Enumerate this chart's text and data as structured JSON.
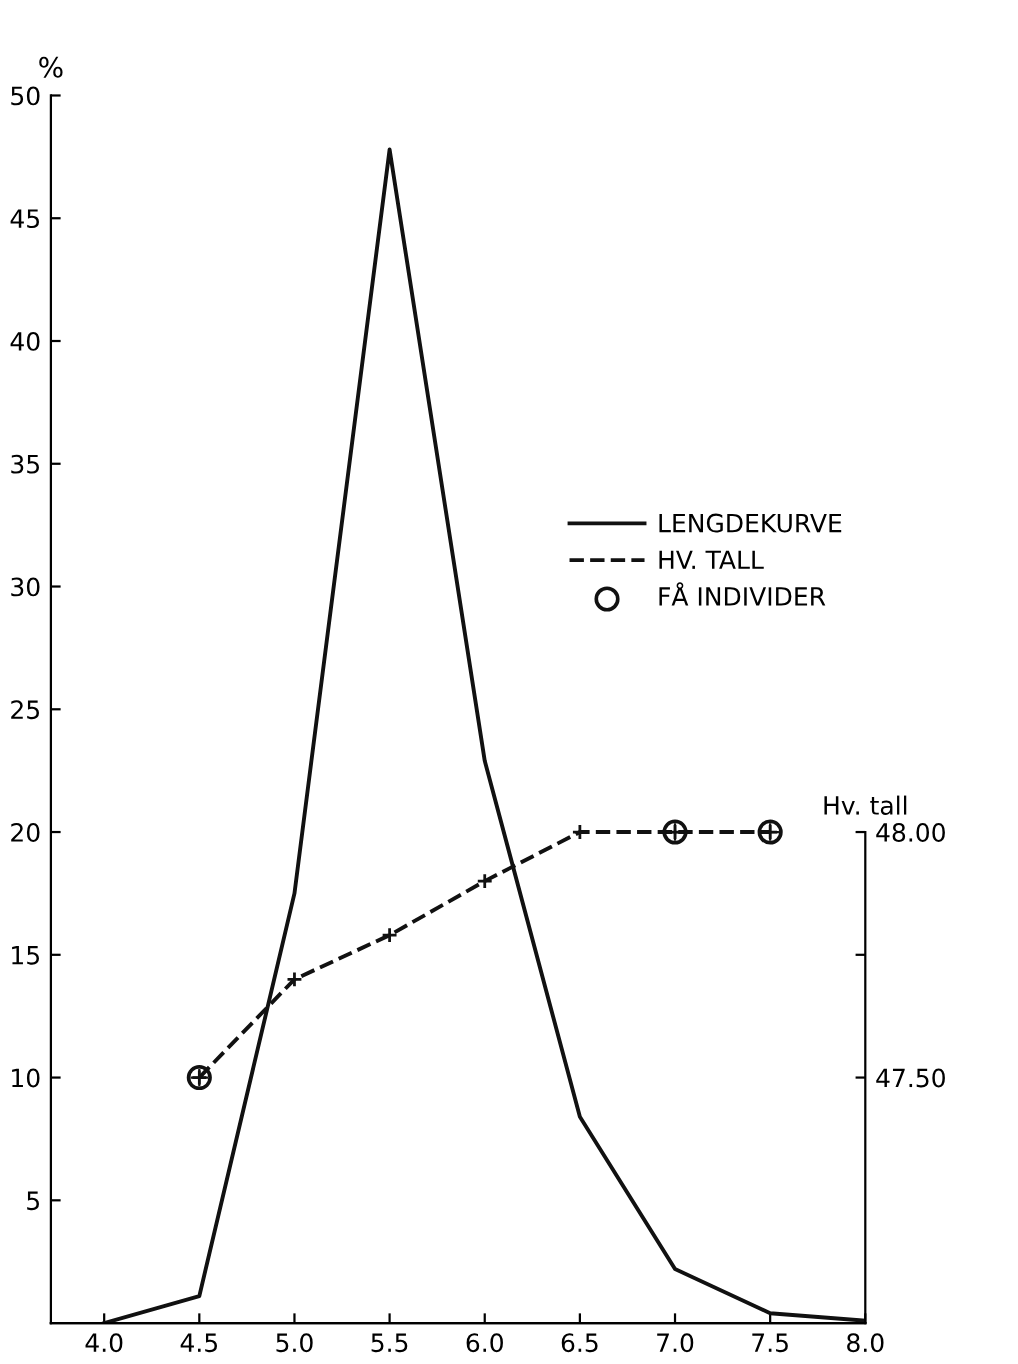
{
  "chart_data": {
    "type": "line",
    "ylabel": "%",
    "y2label": "Hv. tall",
    "x": [
      4.0,
      4.5,
      5.0,
      5.5,
      6.0,
      6.5,
      7.0,
      7.5,
      8.0
    ],
    "series": [
      {
        "name": "LENGDEKURVE",
        "color": "#111111",
        "line_style": "solid",
        "marker": "none",
        "values": [
          0,
          1.1,
          17.5,
          47.8,
          22.9,
          8.4,
          2.2,
          0.4,
          0.1
        ]
      },
      {
        "name": "HV. TALL",
        "color": "#111111",
        "line_style": "dashed",
        "marker": "cross",
        "axis": "y2",
        "x": [
          4.5,
          5.0,
          5.5,
          6.0,
          6.5,
          7.0,
          7.5
        ],
        "values": [
          47.5,
          47.7,
          47.79,
          47.9,
          48.0,
          48.0,
          48.0
        ]
      },
      {
        "name": "FÅ INDIVIDER",
        "type": "scatter",
        "color": "#111111",
        "marker": "circle",
        "axis": "y2",
        "x": [
          4.5,
          7.0,
          7.5
        ],
        "values": [
          47.5,
          48.0,
          48.0
        ]
      }
    ],
    "xlim": [
      3.72,
      8.0
    ],
    "xticks": [
      {
        "value": 4.0,
        "label": "4.0"
      },
      4.5,
      {
        "value": 5.0,
        "label": "5.0"
      },
      5.5,
      {
        "value": 6.0,
        "label": "6.0"
      },
      6.5,
      {
        "value": 7.0,
        "label": "7.0"
      },
      7.5,
      {
        "value": 8.0,
        "label": "8.0"
      }
    ],
    "ylim": [
      0,
      50
    ],
    "yticks": [
      5,
      10,
      15,
      20,
      25,
      30,
      35,
      40,
      45,
      50
    ],
    "y2lim": [
      47.0,
      49.5
    ],
    "y2ticks": [
      {
        "value": 47.5,
        "label": "47.50"
      },
      {
        "value": 47.75,
        "label": null
      },
      {
        "value": 48.0,
        "label": "48.00"
      }
    ],
    "grid": false,
    "legend": "right"
  }
}
